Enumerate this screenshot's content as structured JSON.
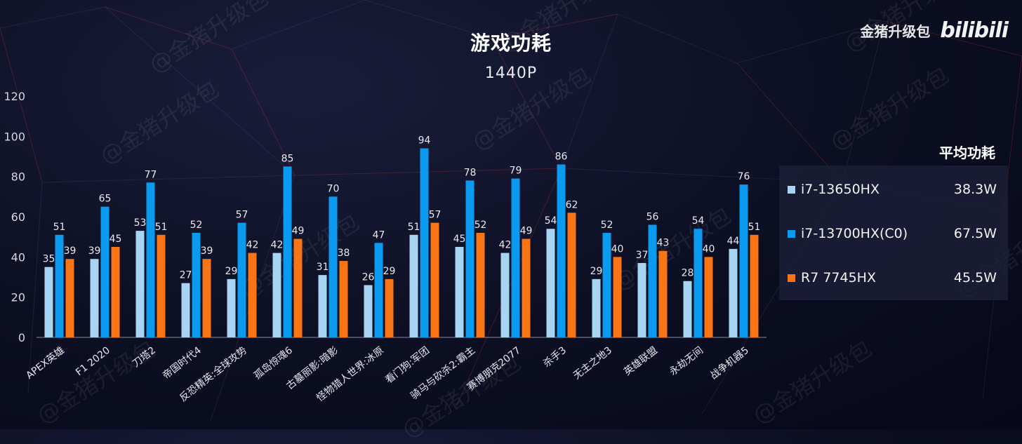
{
  "brand": {
    "text": "金猪升级包",
    "logo": "bilibili"
  },
  "watermark": "@金猪升级包",
  "legend": {
    "header": "平均功耗",
    "items": [
      {
        "name": "i7-13650HX",
        "value": "38.3W",
        "color": "#a6d4f2"
      },
      {
        "name": "i7-13700HX(C0)",
        "value": "67.5W",
        "color": "#0a9af0"
      },
      {
        "name": "R7 7745HX",
        "value": "45.5W",
        "color": "#f97415"
      }
    ]
  },
  "chart_data": {
    "type": "bar",
    "title": "游戏功耗",
    "subtitle": "1440P",
    "xlabel": "",
    "ylabel": "",
    "ylim": [
      0,
      120
    ],
    "yticks": [
      0,
      20,
      40,
      60,
      80,
      100,
      120
    ],
    "categories": [
      "APEX英雄",
      "F1 2020",
      "刀塔2",
      "帝国时代4",
      "反恐精英:全球攻势",
      "孤岛惊魂6",
      "古墓丽影:暗影",
      "怪物猎人世界:冰原",
      "看门狗:军团",
      "骑马与砍杀2:霸主",
      "赛博朋克2077",
      "杀手3",
      "无主之地3",
      "英雄联盟",
      "永劫无间",
      "战争机器5"
    ],
    "series": [
      {
        "name": "i7-13650HX",
        "color": "#a6d4f2",
        "values": [
          35,
          39,
          53,
          27,
          29,
          42,
          31,
          26,
          51,
          45,
          42,
          54,
          29,
          37,
          28,
          44
        ]
      },
      {
        "name": "i7-13700HX(C0)",
        "color": "#0a9af0",
        "values": [
          51,
          65,
          77,
          52,
          57,
          85,
          70,
          47,
          94,
          78,
          79,
          86,
          52,
          56,
          54,
          76
        ]
      },
      {
        "name": "R7 7745HX",
        "color": "#f97415",
        "values": [
          39,
          45,
          51,
          39,
          42,
          49,
          38,
          29,
          57,
          52,
          49,
          62,
          40,
          43,
          40,
          51
        ]
      }
    ],
    "grid": false,
    "legend_position": "right"
  }
}
